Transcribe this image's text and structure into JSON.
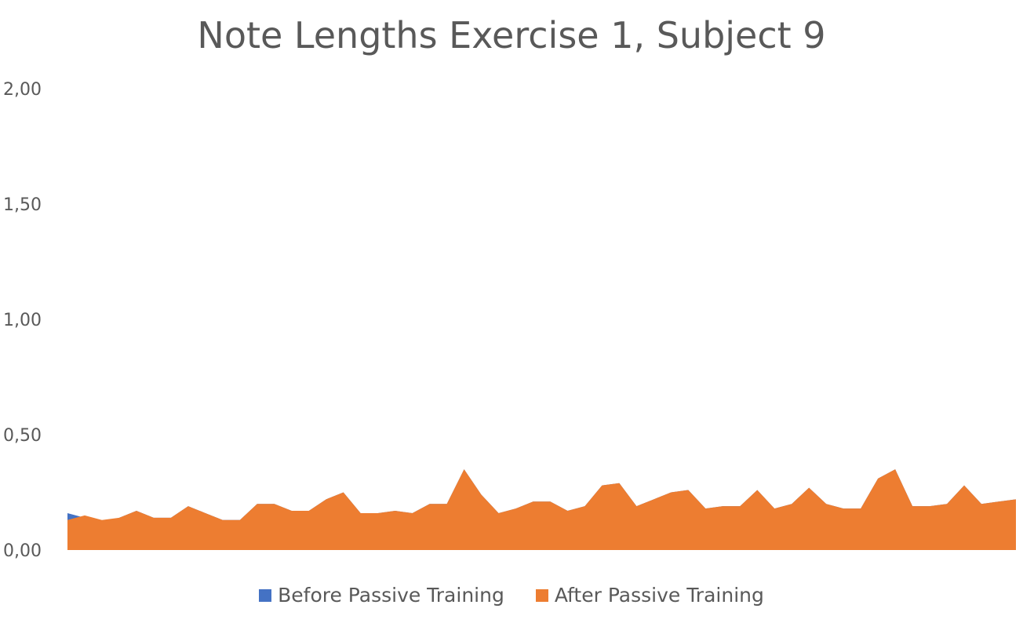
{
  "chart_data": {
    "type": "area",
    "title": "Note Lengths  Exercise 1, Subject 9",
    "xlabel": "",
    "ylabel": "",
    "ylim": [
      0,
      2
    ],
    "yticks": [
      "0,00",
      "0,50",
      "1,00",
      "1,50",
      "2,00"
    ],
    "ytick_values": [
      0,
      0.5,
      1.0,
      1.5,
      2.0
    ],
    "grid": false,
    "legend_position": "bottom",
    "series": [
      {
        "name": "Before Passive Training",
        "color": "#4472C4",
        "values": [
          0.16,
          0.14,
          0.12,
          0.14,
          0.17,
          0.14,
          0.14,
          0.19,
          0.16,
          0.13,
          0.13,
          0.2,
          0.2,
          0.17,
          0.17,
          0.22,
          0.25,
          0.16,
          0.16,
          0.17,
          0.16,
          0.2,
          0.2,
          0.35,
          0.24,
          0.16,
          0.18,
          0.21,
          0.21,
          0.17,
          0.19,
          0.28,
          0.29,
          0.19,
          0.22,
          0.25,
          0.26,
          0.18,
          0.19,
          0.19,
          0.26,
          0.18,
          0.2,
          0.27,
          0.2,
          0.18,
          0.18,
          0.31,
          0.35,
          0.19,
          0.19,
          0.2,
          0.28,
          0.2,
          0.21,
          0.22
        ]
      },
      {
        "name": "After Passive Training",
        "color": "#ED7D31",
        "values": [
          0.13,
          0.15,
          0.13,
          0.14,
          0.17,
          0.14,
          0.14,
          0.19,
          0.16,
          0.13,
          0.13,
          0.2,
          0.2,
          0.17,
          0.17,
          0.22,
          0.25,
          0.16,
          0.16,
          0.17,
          0.16,
          0.2,
          0.2,
          0.35,
          0.24,
          0.16,
          0.18,
          0.21,
          0.21,
          0.17,
          0.19,
          0.28,
          0.29,
          0.19,
          0.22,
          0.25,
          0.26,
          0.18,
          0.19,
          0.19,
          0.26,
          0.18,
          0.2,
          0.27,
          0.2,
          0.18,
          0.18,
          0.31,
          0.35,
          0.19,
          0.19,
          0.2,
          0.28,
          0.2,
          0.21,
          0.22
        ]
      }
    ]
  }
}
